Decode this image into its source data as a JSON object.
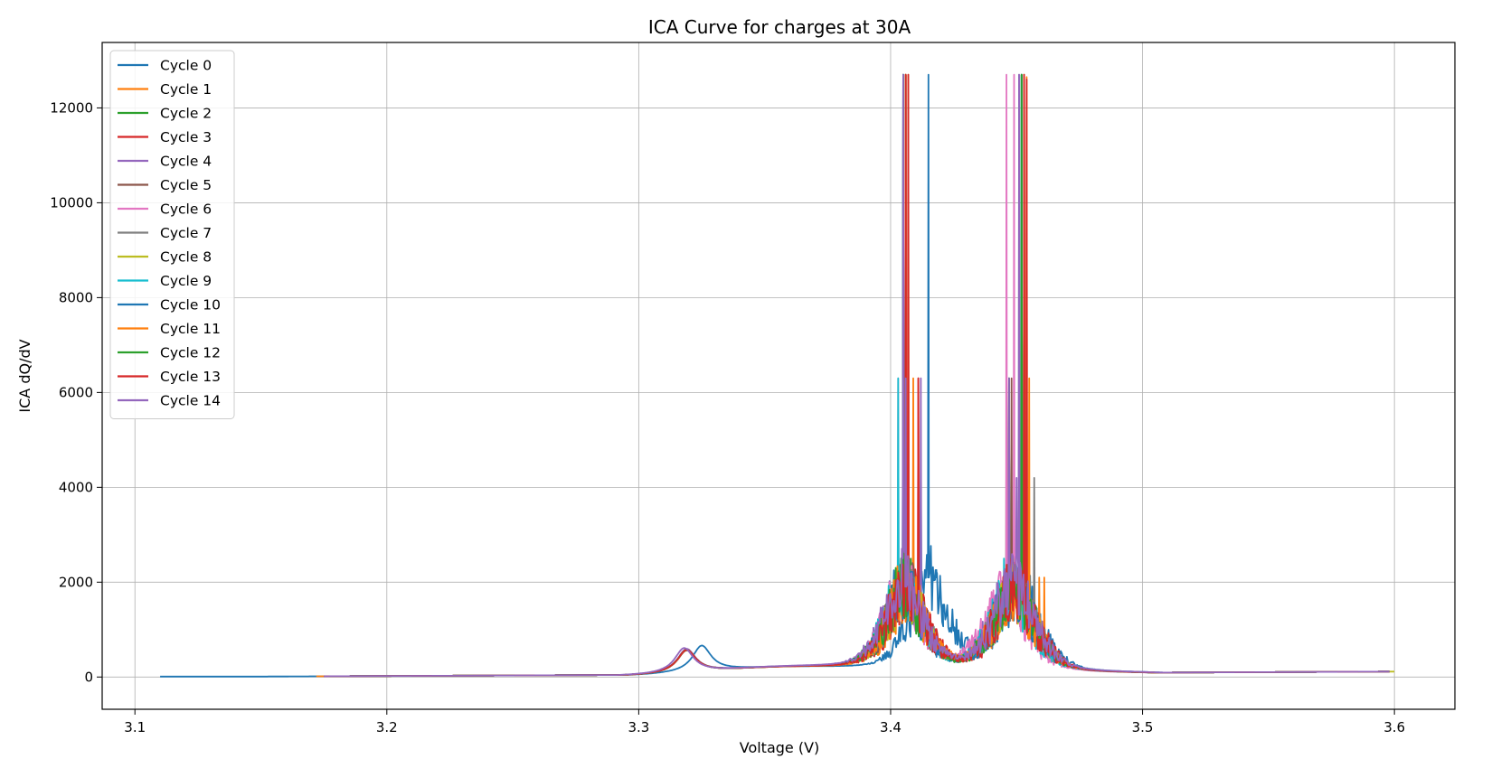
{
  "chart_data": {
    "type": "line",
    "title": "ICA Curve for charges at 30A",
    "xlabel": "Voltage (V)",
    "ylabel": "ICA dQ/dV",
    "xlim": [
      3.087,
      3.624
    ],
    "ylim": [
      -680,
      13380
    ],
    "xticks": [
      3.1,
      3.2,
      3.3,
      3.4,
      3.5,
      3.6
    ],
    "xtick_labels": [
      "3.1",
      "3.2",
      "3.3",
      "3.4",
      "3.5",
      "3.6"
    ],
    "yticks": [
      0,
      2000,
      4000,
      6000,
      8000,
      10000,
      12000
    ],
    "ytick_labels": [
      "0",
      "2000",
      "4000",
      "6000",
      "8000",
      "10000",
      "12000"
    ],
    "grid": true,
    "legend_position": "top-left",
    "series": [
      {
        "name": "Cycle 0",
        "color": "#1f77b4",
        "x_start": 3.11,
        "x_end": 3.597,
        "p1_v": 3.325,
        "p1_h": 550,
        "p2_v": 3.415,
        "p2_h": 1300,
        "p3_v": 3.451,
        "p3_h": 1100,
        "spikes": [
          [
            3.415,
            12700
          ],
          [
            3.412,
            4300
          ],
          [
            3.418,
            2100
          ],
          [
            3.421,
            1500
          ]
        ]
      },
      {
        "name": "Cycle 1",
        "color": "#ff7f0e",
        "x_start": 3.172,
        "x_end": 3.598,
        "p1_v": 3.319,
        "p1_h": 480,
        "p2_v": 3.407,
        "p2_h": 1050,
        "p3_v": 3.449,
        "p3_h": 1050,
        "spikes": [
          [
            3.407,
            12700
          ],
          [
            3.454,
            12650
          ],
          [
            3.409,
            6300
          ],
          [
            3.459,
            2100
          ],
          [
            3.461,
            2100
          ]
        ]
      },
      {
        "name": "Cycle 2",
        "color": "#2ca02c",
        "x_start": 3.175,
        "x_end": 3.598,
        "p1_v": 3.319,
        "p1_h": 470,
        "p2_v": 3.406,
        "p2_h": 1100,
        "p3_v": 3.449,
        "p3_h": 1080,
        "spikes": [
          [
            3.406,
            12700
          ],
          [
            3.452,
            12700
          ],
          [
            3.446,
            6300
          ],
          [
            3.457,
            1900
          ]
        ]
      },
      {
        "name": "Cycle 3",
        "color": "#d62728",
        "x_start": 3.175,
        "x_end": 3.598,
        "p1_v": 3.319,
        "p1_h": 470,
        "p2_v": 3.407,
        "p2_h": 1100,
        "p3_v": 3.45,
        "p3_h": 1060,
        "spikes": [
          [
            3.407,
            12700
          ],
          [
            3.454,
            12600
          ],
          [
            3.411,
            6300
          ],
          [
            3.402,
            2100
          ]
        ]
      },
      {
        "name": "Cycle 4",
        "color": "#9467bd",
        "x_start": 3.175,
        "x_end": 3.598,
        "p1_v": 3.319,
        "p1_h": 500,
        "p2_v": 3.405,
        "p2_h": 1200,
        "p3_v": 3.448,
        "p3_h": 1150,
        "spikes": [
          [
            3.405,
            12700
          ],
          [
            3.451,
            12700
          ],
          [
            3.412,
            6300
          ]
        ]
      },
      {
        "name": "Cycle 5",
        "color": "#8c564b",
        "x_start": 3.175,
        "x_end": 3.598,
        "p1_v": 3.319,
        "p1_h": 480,
        "p2_v": 3.406,
        "p2_h": 1100,
        "p3_v": 3.449,
        "p3_h": 1080,
        "spikes": [
          [
            3.406,
            12700
          ],
          [
            3.452,
            12700
          ],
          [
            3.448,
            6300
          ]
        ]
      },
      {
        "name": "Cycle 6",
        "color": "#e377c2",
        "x_start": 3.175,
        "x_end": 3.598,
        "p1_v": 3.319,
        "p1_h": 480,
        "p2_v": 3.405,
        "p2_h": 1150,
        "p3_v": 3.446,
        "p3_h": 1100,
        "spikes": [
          [
            3.405,
            12700
          ],
          [
            3.446,
            12700
          ],
          [
            3.449,
            12700
          ],
          [
            3.403,
            6300
          ]
        ]
      },
      {
        "name": "Cycle 7",
        "color": "#7f7f7f",
        "x_start": 3.175,
        "x_end": 3.598,
        "p1_v": 3.319,
        "p1_h": 480,
        "p2_v": 3.406,
        "p2_h": 1100,
        "p3_v": 3.449,
        "p3_h": 1100,
        "spikes": [
          [
            3.406,
            12700
          ],
          [
            3.452,
            12700
          ],
          [
            3.457,
            4200
          ]
        ]
      },
      {
        "name": "Cycle 8",
        "color": "#bcbd22",
        "x_start": 3.175,
        "x_end": 3.6,
        "p1_v": 3.319,
        "p1_h": 480,
        "p2_v": 3.406,
        "p2_h": 1100,
        "p3_v": 3.449,
        "p3_h": 1100,
        "spikes": [
          [
            3.406,
            12700
          ],
          [
            3.453,
            12700
          ],
          [
            3.447,
            6300
          ]
        ]
      },
      {
        "name": "Cycle 9",
        "color": "#17becf",
        "x_start": 3.175,
        "x_end": 3.598,
        "p1_v": 3.319,
        "p1_h": 480,
        "p2_v": 3.405,
        "p2_h": 1100,
        "p3_v": 3.448,
        "p3_h": 1100,
        "spikes": [
          [
            3.405,
            12700
          ],
          [
            3.403,
            6300
          ],
          [
            3.452,
            12700
          ],
          [
            3.445,
            2500
          ]
        ]
      },
      {
        "name": "Cycle 10",
        "color": "#1f77b4",
        "x_start": 3.175,
        "x_end": 3.598,
        "p1_v": 3.319,
        "p1_h": 480,
        "p2_v": 3.405,
        "p2_h": 1100,
        "p3_v": 3.449,
        "p3_h": 1100,
        "spikes": [
          [
            3.405,
            12700
          ],
          [
            3.452,
            12700
          ],
          [
            3.447,
            6300
          ]
        ]
      },
      {
        "name": "Cycle 11",
        "color": "#ff7f0e",
        "x_start": 3.175,
        "x_end": 3.598,
        "p1_v": 3.319,
        "p1_h": 480,
        "p2_v": 3.406,
        "p2_h": 1100,
        "p3_v": 3.449,
        "p3_h": 1100,
        "spikes": [
          [
            3.406,
            12700
          ],
          [
            3.453,
            12700
          ],
          [
            3.455,
            6300
          ]
        ]
      },
      {
        "name": "Cycle 12",
        "color": "#2ca02c",
        "x_start": 3.175,
        "x_end": 3.598,
        "p1_v": 3.319,
        "p1_h": 480,
        "p2_v": 3.405,
        "p2_h": 1100,
        "p3_v": 3.449,
        "p3_h": 1100,
        "spikes": [
          [
            3.405,
            12700
          ],
          [
            3.452,
            12700
          ],
          [
            3.447,
            6300
          ]
        ]
      },
      {
        "name": "Cycle 13",
        "color": "#d62728",
        "x_start": 3.175,
        "x_end": 3.598,
        "p1_v": 3.319,
        "p1_h": 480,
        "p2_v": 3.406,
        "p2_h": 1100,
        "p3_v": 3.449,
        "p3_h": 1100,
        "spikes": [
          [
            3.406,
            12700
          ],
          [
            3.453,
            12700
          ],
          [
            3.411,
            6300
          ]
        ]
      },
      {
        "name": "Cycle 14",
        "color": "#9467bd",
        "x_start": 3.175,
        "x_end": 3.598,
        "p1_v": 3.318,
        "p1_h": 520,
        "p2_v": 3.405,
        "p2_h": 1300,
        "p3_v": 3.449,
        "p3_h": 1250,
        "spikes": [
          [
            3.405,
            12700
          ],
          [
            3.451,
            12700
          ],
          [
            3.406,
            6300
          ],
          [
            3.45,
            4200
          ],
          [
            3.447,
            6300
          ]
        ]
      }
    ]
  }
}
